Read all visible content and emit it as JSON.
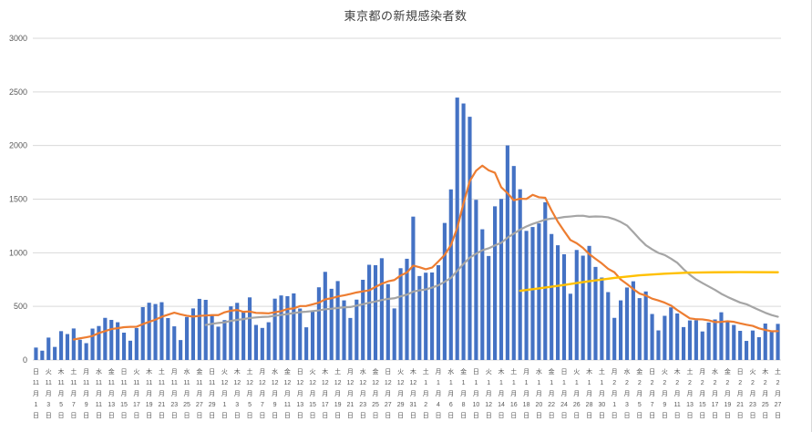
{
  "chart_data": {
    "type": "bar",
    "title": "東京都の新規感染者数",
    "xlabel": "",
    "ylabel": "",
    "ylim": [
      0,
      3000
    ],
    "yticks": [
      0,
      500,
      1000,
      1500,
      2000,
      2500,
      3000
    ],
    "grid": true,
    "legend": "none",
    "tick_every": 2,
    "colors": {
      "bars": "#4472C4",
      "ma7": "#ED7D31",
      "ma28": "#A5A5A5",
      "reference": "#FFC000",
      "gridline": "#D9D9D9",
      "axis_text": "#595959",
      "title_text": "#404040"
    },
    "series": [
      {
        "name": "daily-new-cases",
        "type": "bar",
        "color": "#4472C4",
        "values": [
          116,
          87,
          209,
          122,
          269,
          242,
          294,
          189,
          157,
          293,
          317,
          393,
          374,
          352,
          255,
          180,
          298,
          493,
          534,
          522,
          539,
          391,
          314,
          186,
          401,
          481,
          570,
          561,
          418,
          311,
          372,
          500,
          533,
          449,
          584,
          327,
          299,
          352,
          572,
          602,
          595,
          621,
          480,
          305,
          460,
          678,
          822,
          664,
          736,
          556,
          392,
          563,
          748,
          888,
          884,
          949,
          708,
          481,
          856,
          944,
          1337,
          783,
          814,
          816,
          884,
          1278,
          1591,
          2447,
          2392,
          2268,
          1494,
          1219,
          970,
          1433,
          1502,
          2001,
          1809,
          1592,
          1204,
          1240,
          1274,
          1471,
          1175,
          1070,
          986,
          618,
          1026,
          973,
          1064,
          868,
          769,
          633,
          393,
          556,
          676,
          734,
          577,
          639,
          429,
          276,
          412,
          491,
          434,
          307,
          369,
          371,
          266,
          350,
          378,
          445,
          353,
          327,
          272,
          178,
          275,
          213,
          340,
          270,
          337
        ]
      },
      {
        "name": "7-day-moving-average",
        "type": "line",
        "color": "#ED7D31",
        "window": 7,
        "derived_from": "daily-new-cases"
      },
      {
        "name": "28-day-moving-average",
        "type": "line",
        "color": "#A5A5A5",
        "window": 28,
        "derived_from": "daily-new-cases"
      },
      {
        "name": "yellow-reference-line",
        "type": "line",
        "color": "#FFC000",
        "points": [
          [
            77,
            645
          ],
          [
            80,
            668
          ],
          [
            84,
            700
          ],
          [
            88,
            735
          ],
          [
            92,
            765
          ],
          [
            96,
            790
          ],
          [
            100,
            805
          ],
          [
            104,
            815
          ],
          [
            108,
            818
          ],
          [
            112,
            820
          ],
          [
            118,
            818
          ]
        ]
      }
    ],
    "xticks": [
      {
        "w": "日",
        "m": "11",
        "d": "1"
      },
      {
        "w": "火",
        "m": "11",
        "d": "3"
      },
      {
        "w": "木",
        "m": "11",
        "d": "5"
      },
      {
        "w": "土",
        "m": "11",
        "d": "7"
      },
      {
        "w": "月",
        "m": "11",
        "d": "9"
      },
      {
        "w": "水",
        "m": "11",
        "d": "11"
      },
      {
        "w": "金",
        "m": "11",
        "d": "13"
      },
      {
        "w": "日",
        "m": "11",
        "d": "15"
      },
      {
        "w": "火",
        "m": "11",
        "d": "17"
      },
      {
        "w": "木",
        "m": "11",
        "d": "19"
      },
      {
        "w": "土",
        "m": "11",
        "d": "21"
      },
      {
        "w": "月",
        "m": "11",
        "d": "23"
      },
      {
        "w": "水",
        "m": "11",
        "d": "25"
      },
      {
        "w": "金",
        "m": "11",
        "d": "27"
      },
      {
        "w": "日",
        "m": "11",
        "d": "29"
      },
      {
        "w": "火",
        "m": "12",
        "d": "1"
      },
      {
        "w": "木",
        "m": "12",
        "d": "3"
      },
      {
        "w": "土",
        "m": "12",
        "d": "5"
      },
      {
        "w": "月",
        "m": "12",
        "d": "7"
      },
      {
        "w": "水",
        "m": "12",
        "d": "9"
      },
      {
        "w": "金",
        "m": "12",
        "d": "11"
      },
      {
        "w": "日",
        "m": "12",
        "d": "13"
      },
      {
        "w": "火",
        "m": "12",
        "d": "15"
      },
      {
        "w": "木",
        "m": "12",
        "d": "17"
      },
      {
        "w": "土",
        "m": "12",
        "d": "19"
      },
      {
        "w": "月",
        "m": "12",
        "d": "21"
      },
      {
        "w": "水",
        "m": "12",
        "d": "23"
      },
      {
        "w": "金",
        "m": "12",
        "d": "25"
      },
      {
        "w": "日",
        "m": "12",
        "d": "27"
      },
      {
        "w": "火",
        "m": "12",
        "d": "29"
      },
      {
        "w": "木",
        "m": "12",
        "d": "31"
      },
      {
        "w": "土",
        "m": "1",
        "d": "2"
      },
      {
        "w": "月",
        "m": "1",
        "d": "4"
      },
      {
        "w": "水",
        "m": "1",
        "d": "6"
      },
      {
        "w": "金",
        "m": "1",
        "d": "8"
      },
      {
        "w": "日",
        "m": "1",
        "d": "10"
      },
      {
        "w": "火",
        "m": "1",
        "d": "12"
      },
      {
        "w": "木",
        "m": "1",
        "d": "14"
      },
      {
        "w": "土",
        "m": "1",
        "d": "16"
      },
      {
        "w": "月",
        "m": "1",
        "d": "18"
      },
      {
        "w": "水",
        "m": "1",
        "d": "20"
      },
      {
        "w": "金",
        "m": "1",
        "d": "22"
      },
      {
        "w": "日",
        "m": "1",
        "d": "24"
      },
      {
        "w": "火",
        "m": "1",
        "d": "26"
      },
      {
        "w": "木",
        "m": "1",
        "d": "28"
      },
      {
        "w": "土",
        "m": "1",
        "d": "30"
      },
      {
        "w": "月",
        "m": "2",
        "d": "1"
      },
      {
        "w": "水",
        "m": "2",
        "d": "3"
      },
      {
        "w": "金",
        "m": "2",
        "d": "5"
      },
      {
        "w": "日",
        "m": "2",
        "d": "7"
      },
      {
        "w": "火",
        "m": "2",
        "d": "9"
      },
      {
        "w": "木",
        "m": "2",
        "d": "11"
      },
      {
        "w": "土",
        "m": "2",
        "d": "13"
      },
      {
        "w": "月",
        "m": "2",
        "d": "15"
      },
      {
        "w": "水",
        "m": "2",
        "d": "17"
      },
      {
        "w": "金",
        "m": "2",
        "d": "19"
      },
      {
        "w": "日",
        "m": "2",
        "d": "21"
      },
      {
        "w": "火",
        "m": "2",
        "d": "23"
      },
      {
        "w": "木",
        "m": "2",
        "d": "25"
      },
      {
        "w": "土",
        "m": "2",
        "d": "27"
      }
    ]
  }
}
